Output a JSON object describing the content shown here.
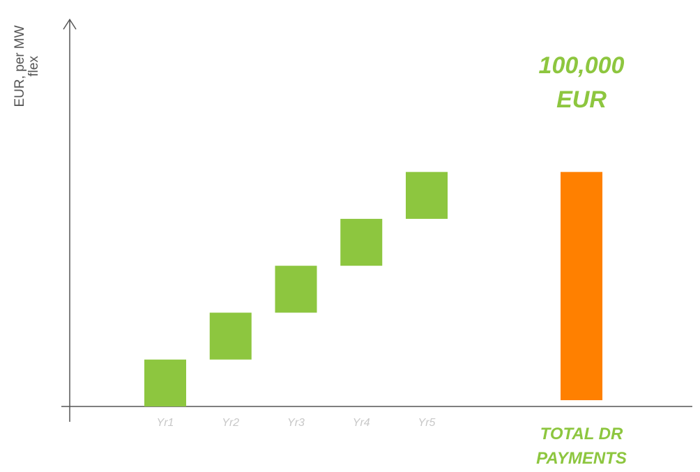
{
  "chart_data": {
    "type": "waterfall",
    "y_label": "EUR, per MW flex",
    "categories": [
      "Yr1",
      "Yr2",
      "Yr3",
      "Yr4",
      "Yr5"
    ],
    "values": [
      20000,
      20000,
      20000,
      20000,
      20000
    ],
    "color": "#8dc63f",
    "total": {
      "label": "TOTAL DR PAYMENTS",
      "value": 100000,
      "value_label": "100,000 EUR",
      "color": "#ff8000"
    },
    "ylim": [
      0,
      165000
    ]
  }
}
